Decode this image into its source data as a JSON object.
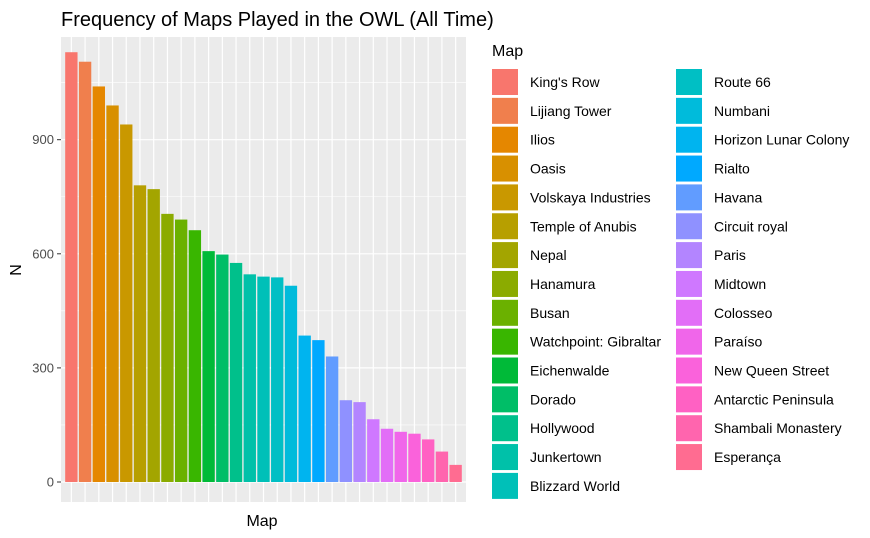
{
  "chart_data": {
    "type": "bar",
    "title": "Frequency of Maps Played in the OWL (All Time)",
    "xlabel": "Map",
    "ylabel": "N",
    "ylim": [
      0,
      1170
    ],
    "yticks": [
      0,
      300,
      600,
      900
    ],
    "grid": true,
    "legend_title": "Map",
    "legend_position": "right",
    "categories": [
      "King's Row",
      "Lijiang Tower",
      "Ilios",
      "Oasis",
      "Volskaya Industries",
      "Temple of Anubis",
      "Nepal",
      "Hanamura",
      "Busan",
      "Watchpoint: Gibraltar",
      "Eichenwalde",
      "Dorado",
      "Hollywood",
      "Junkertown",
      "Blizzard World",
      "Route 66",
      "Numbani",
      "Horizon Lunar Colony",
      "Rialto",
      "Havana",
      "Circuit royal",
      "Paris",
      "Midtown",
      "Colosseo",
      "Paraíso",
      "New Queen Street",
      "Antarctic Peninsula",
      "Shambali Monastery",
      "Esperança"
    ],
    "values": [
      1130,
      1105,
      1040,
      990,
      940,
      780,
      770,
      705,
      690,
      662,
      607,
      598,
      576,
      546,
      540,
      538,
      516,
      385,
      373,
      330,
      215,
      210,
      165,
      140,
      132,
      127,
      112,
      80,
      45
    ],
    "colors": [
      "#F8766D",
      "#F07F4D",
      "#E58700",
      "#D89000",
      "#C99800",
      "#B79F00",
      "#A3A500",
      "#8BAB00",
      "#6BB100",
      "#39B600",
      "#00BA38",
      "#00BE67",
      "#00C08B",
      "#00C1A9",
      "#00C0B8",
      "#00BFC4",
      "#00BBDB",
      "#00B4EF",
      "#00A9FF",
      "#619CFF",
      "#8F91FF",
      "#B385FF",
      "#CF78FF",
      "#E26EF7",
      "#F066EA",
      "#FA62DB",
      "#FF61C3",
      "#FF65AE",
      "#FF6C91"
    ]
  }
}
